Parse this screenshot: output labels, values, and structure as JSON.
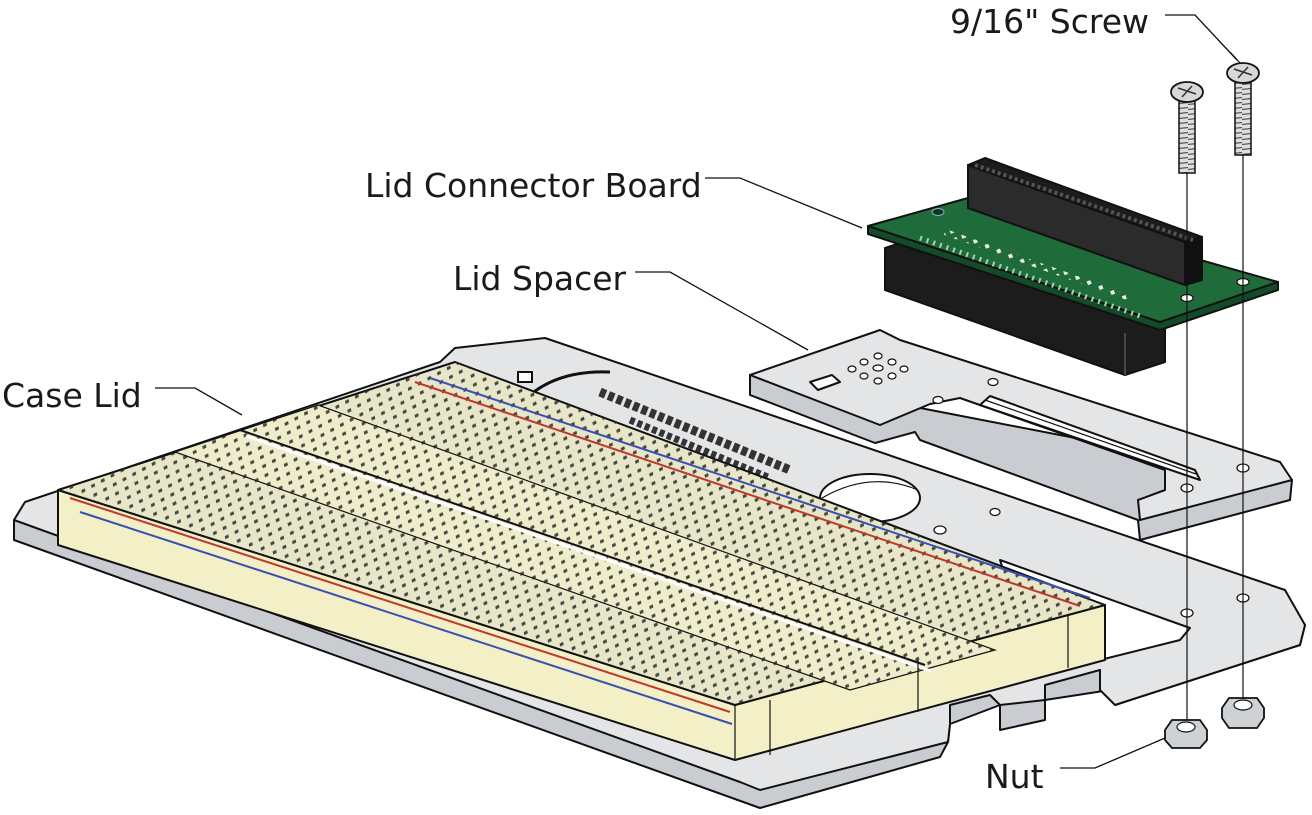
{
  "labels": {
    "screw": "9/16\" Screw",
    "connector_board": "Lid Connector Board",
    "spacer": "Lid Spacer",
    "case_lid": "Case Lid",
    "nut": "Nut"
  },
  "colors": {
    "metal_top": "#e4e5e6",
    "metal_side": "#c9ccd0",
    "metal_edge": "#f4f5f6",
    "breadboard_top": "#e7e6c8",
    "breadboard_side": "#f3f0c8",
    "breadboard_hole": "#2b2b2b",
    "rail_red": "#c0392b",
    "rail_blue": "#3a4fb0",
    "pcb_green": "#1f6b3a",
    "connector_black": "#1c1c1c"
  }
}
